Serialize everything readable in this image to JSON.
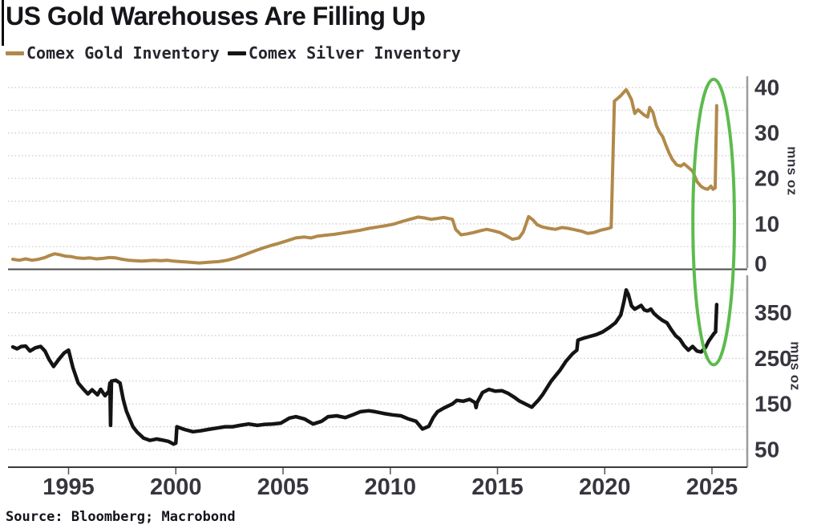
{
  "header": {
    "title": "US Gold Warehouses Are Filling Up"
  },
  "legend": [
    {
      "label": "Comex Gold Inventory",
      "color": "#b1894a"
    },
    {
      "label": "Comex Silver Inventory",
      "color": "#141414"
    }
  ],
  "source": "Source: Bloomberg; Macrobond",
  "colors": {
    "gold_line": "#b1894a",
    "silver_line": "#141414",
    "annotation_green": "#5dbb4d",
    "gridline": "#c9c9c9",
    "axis_line": "#3a3a3a",
    "panel_divider": "#4a4a4a",
    "right_axis_line": "#9c9c9c",
    "tick_label": "#36363e"
  },
  "chart_data": [
    {
      "type": "line",
      "panel": "top",
      "ylabel": "mns oz",
      "ylim": [
        0,
        42.5
      ],
      "ygrid_step": 5,
      "yticks_labeled": [
        0,
        10,
        20,
        30,
        40
      ],
      "x_range": [
        1992.4,
        2026.6
      ],
      "grid": "dotted-horizontal",
      "legend_position": "top-left-above-chart",
      "series": [
        {
          "name": "Comex Gold Inventory",
          "color": "#b1894a",
          "points": [
            [
              1992.4,
              2.2
            ],
            [
              1992.7,
              2.0
            ],
            [
              1993.0,
              2.3
            ],
            [
              1993.3,
              2.0
            ],
            [
              1993.6,
              2.2
            ],
            [
              1993.9,
              2.6
            ],
            [
              1994.1,
              3.0
            ],
            [
              1994.35,
              3.4
            ],
            [
              1994.6,
              3.2
            ],
            [
              1994.85,
              2.9
            ],
            [
              1995.1,
              2.8
            ],
            [
              1995.4,
              2.5
            ],
            [
              1995.7,
              2.4
            ],
            [
              1996.0,
              2.5
            ],
            [
              1996.3,
              2.3
            ],
            [
              1996.6,
              2.4
            ],
            [
              1996.9,
              2.6
            ],
            [
              1997.2,
              2.5
            ],
            [
              1997.5,
              2.2
            ],
            [
              1997.8,
              2.0
            ],
            [
              1998.1,
              1.9
            ],
            [
              1998.4,
              1.8
            ],
            [
              1998.7,
              1.9
            ],
            [
              1999.0,
              2.0
            ],
            [
              1999.3,
              1.9
            ],
            [
              1999.6,
              2.0
            ],
            [
              1999.9,
              1.8
            ],
            [
              2000.2,
              1.7
            ],
            [
              2000.5,
              1.6
            ],
            [
              2000.8,
              1.5
            ],
            [
              2001.1,
              1.4
            ],
            [
              2001.4,
              1.5
            ],
            [
              2001.7,
              1.6
            ],
            [
              2002.0,
              1.7
            ],
            [
              2002.4,
              2.0
            ],
            [
              2002.8,
              2.5
            ],
            [
              2003.2,
              3.2
            ],
            [
              2003.6,
              3.9
            ],
            [
              2004.0,
              4.6
            ],
            [
              2004.4,
              5.2
            ],
            [
              2004.8,
              5.7
            ],
            [
              2005.2,
              6.3
            ],
            [
              2005.6,
              6.9
            ],
            [
              2006.0,
              7.1
            ],
            [
              2006.3,
              6.9
            ],
            [
              2006.6,
              7.3
            ],
            [
              2007.0,
              7.5
            ],
            [
              2007.4,
              7.7
            ],
            [
              2007.8,
              8.0
            ],
            [
              2008.2,
              8.3
            ],
            [
              2008.6,
              8.6
            ],
            [
              2009.0,
              9.0
            ],
            [
              2009.4,
              9.3
            ],
            [
              2009.8,
              9.6
            ],
            [
              2010.2,
              10.0
            ],
            [
              2010.6,
              10.6
            ],
            [
              2011.0,
              11.1
            ],
            [
              2011.3,
              11.5
            ],
            [
              2011.6,
              11.3
            ],
            [
              2011.9,
              11.0
            ],
            [
              2012.2,
              11.2
            ],
            [
              2012.5,
              11.4
            ],
            [
              2012.9,
              11.0
            ],
            [
              2013.05,
              8.8
            ],
            [
              2013.3,
              7.6
            ],
            [
              2013.6,
              7.8
            ],
            [
              2013.9,
              8.1
            ],
            [
              2014.2,
              8.5
            ],
            [
              2014.5,
              8.8
            ],
            [
              2014.8,
              8.5
            ],
            [
              2015.1,
              8.1
            ],
            [
              2015.4,
              7.4
            ],
            [
              2015.7,
              6.6
            ],
            [
              2016.0,
              6.9
            ],
            [
              2016.2,
              8.2
            ],
            [
              2016.45,
              11.6
            ],
            [
              2016.65,
              10.9
            ],
            [
              2016.85,
              9.8
            ],
            [
              2017.1,
              9.3
            ],
            [
              2017.4,
              9.0
            ],
            [
              2017.7,
              8.8
            ],
            [
              2018.0,
              9.2
            ],
            [
              2018.3,
              9.0
            ],
            [
              2018.6,
              8.7
            ],
            [
              2018.9,
              8.4
            ],
            [
              2019.2,
              7.9
            ],
            [
              2019.5,
              8.1
            ],
            [
              2019.8,
              8.6
            ],
            [
              2020.1,
              8.9
            ],
            [
              2020.3,
              9.2
            ],
            [
              2020.45,
              37.0
            ],
            [
              2020.6,
              37.6
            ],
            [
              2020.75,
              38.2
            ],
            [
              2020.9,
              39.0
            ],
            [
              2021.0,
              39.5
            ],
            [
              2021.1,
              38.7
            ],
            [
              2021.25,
              37.3
            ],
            [
              2021.4,
              34.3
            ],
            [
              2021.55,
              35.1
            ],
            [
              2021.7,
              34.5
            ],
            [
              2021.85,
              33.9
            ],
            [
              2022.0,
              33.5
            ],
            [
              2022.1,
              35.6
            ],
            [
              2022.25,
              34.5
            ],
            [
              2022.4,
              31.7
            ],
            [
              2022.55,
              30.2
            ],
            [
              2022.7,
              29.2
            ],
            [
              2022.85,
              27.3
            ],
            [
              2023.0,
              25.6
            ],
            [
              2023.15,
              24.2
            ],
            [
              2023.35,
              23.0
            ],
            [
              2023.55,
              22.7
            ],
            [
              2023.7,
              23.2
            ],
            [
              2023.9,
              22.4
            ],
            [
              2024.1,
              21.6
            ],
            [
              2024.3,
              19.3
            ],
            [
              2024.5,
              18.2
            ],
            [
              2024.65,
              17.8
            ],
            [
              2024.8,
              17.6
            ],
            [
              2024.95,
              18.3
            ],
            [
              2025.05,
              17.6
            ],
            [
              2025.15,
              17.9
            ],
            [
              2025.22,
              36.0
            ]
          ]
        }
      ]
    },
    {
      "type": "line",
      "panel": "bottom",
      "ylabel": "mns oz",
      "ylim": [
        30,
        432
      ],
      "ygrid_step": 50,
      "ygrid_start": 50,
      "yticks_labeled": [
        50,
        150,
        250,
        350
      ],
      "x_range": [
        1992.4,
        2026.6
      ],
      "xticks": [
        1995,
        2000,
        2005,
        2010,
        2015,
        2020,
        2025
      ],
      "grid": "dotted-horizontal",
      "series": [
        {
          "name": "Comex Silver Inventory",
          "color": "#141414",
          "points": [
            [
              1992.4,
              275
            ],
            [
              1992.6,
              271
            ],
            [
              1992.8,
              276
            ],
            [
              1993.0,
              277
            ],
            [
              1993.2,
              266
            ],
            [
              1993.45,
              273
            ],
            [
              1993.7,
              276
            ],
            [
              1993.9,
              266
            ],
            [
              1994.1,
              247
            ],
            [
              1994.3,
              232
            ],
            [
              1994.55,
              248
            ],
            [
              1994.8,
              262
            ],
            [
              1995.0,
              268
            ],
            [
              1995.2,
              230
            ],
            [
              1995.45,
              196
            ],
            [
              1995.7,
              182
            ],
            [
              1995.9,
              172
            ],
            [
              1996.1,
              181
            ],
            [
              1996.35,
              170
            ],
            [
              1996.5,
              182
            ],
            [
              1996.7,
              168
            ],
            [
              1996.88,
              178
            ],
            [
              1996.93,
              196
            ],
            [
              1996.96,
              103
            ],
            [
              1997.0,
              200
            ],
            [
              1997.2,
              202
            ],
            [
              1997.4,
              196
            ],
            [
              1997.55,
              160
            ],
            [
              1997.7,
              134
            ],
            [
              1997.85,
              117
            ],
            [
              1998.0,
              100
            ],
            [
              1998.2,
              88
            ],
            [
              1998.5,
              75
            ],
            [
              1998.8,
              70
            ],
            [
              1999.1,
              73
            ],
            [
              1999.35,
              71
            ],
            [
              1999.65,
              68
            ],
            [
              1999.9,
              62
            ],
            [
              2000.0,
              64
            ],
            [
              2000.05,
              100
            ],
            [
              2000.4,
              94
            ],
            [
              2000.8,
              89
            ],
            [
              2001.15,
              91
            ],
            [
              2001.5,
              94
            ],
            [
              2001.9,
              97
            ],
            [
              2002.3,
              100
            ],
            [
              2002.65,
              100
            ],
            [
              2003.0,
              103
            ],
            [
              2003.4,
              106
            ],
            [
              2003.8,
              103
            ],
            [
              2004.1,
              105
            ],
            [
              2004.5,
              106
            ],
            [
              2004.9,
              108
            ],
            [
              2005.3,
              119
            ],
            [
              2005.6,
              122
            ],
            [
              2006.0,
              117
            ],
            [
              2006.4,
              106
            ],
            [
              2006.8,
              112
            ],
            [
              2007.1,
              122
            ],
            [
              2007.5,
              124
            ],
            [
              2007.9,
              120
            ],
            [
              2008.25,
              126
            ],
            [
              2008.6,
              133
            ],
            [
              2009.0,
              135
            ],
            [
              2009.3,
              133
            ],
            [
              2009.7,
              129
            ],
            [
              2010.1,
              126
            ],
            [
              2010.5,
              124
            ],
            [
              2010.85,
              117
            ],
            [
              2011.2,
              112
            ],
            [
              2011.5,
              95
            ],
            [
              2011.8,
              101
            ],
            [
              2012.0,
              120
            ],
            [
              2012.2,
              133
            ],
            [
              2012.5,
              141
            ],
            [
              2012.9,
              150
            ],
            [
              2013.1,
              158
            ],
            [
              2013.4,
              156
            ],
            [
              2013.7,
              160
            ],
            [
              2013.95,
              153
            ],
            [
              2014.0,
              142
            ],
            [
              2014.05,
              153
            ],
            [
              2014.3,
              175
            ],
            [
              2014.6,
              182
            ],
            [
              2014.9,
              178
            ],
            [
              2015.2,
              179
            ],
            [
              2015.5,
              173
            ],
            [
              2015.8,
              164
            ],
            [
              2016.0,
              157
            ],
            [
              2016.3,
              150
            ],
            [
              2016.6,
              143
            ],
            [
              2016.9,
              158
            ],
            [
              2017.1,
              170
            ],
            [
              2017.5,
              200
            ],
            [
              2017.9,
              223
            ],
            [
              2018.2,
              244
            ],
            [
              2018.5,
              260
            ],
            [
              2018.7,
              268
            ],
            [
              2018.75,
              290
            ],
            [
              2019.0,
              294
            ],
            [
              2019.3,
              298
            ],
            [
              2019.6,
              302
            ],
            [
              2019.9,
              308
            ],
            [
              2020.2,
              317
            ],
            [
              2020.5,
              328
            ],
            [
              2020.75,
              345
            ],
            [
              2020.9,
              375
            ],
            [
              2021.0,
              400
            ],
            [
              2021.1,
              390
            ],
            [
              2021.25,
              365
            ],
            [
              2021.4,
              358
            ],
            [
              2021.55,
              362
            ],
            [
              2021.7,
              366
            ],
            [
              2021.85,
              356
            ],
            [
              2022.0,
              354
            ],
            [
              2022.15,
              358
            ],
            [
              2022.3,
              348
            ],
            [
              2022.5,
              340
            ],
            [
              2022.7,
              333
            ],
            [
              2022.9,
              328
            ],
            [
              2023.1,
              313
            ],
            [
              2023.3,
              300
            ],
            [
              2023.5,
              292
            ],
            [
              2023.7,
              278
            ],
            [
              2023.9,
              268
            ],
            [
              2024.1,
              276
            ],
            [
              2024.3,
              266
            ],
            [
              2024.5,
              264
            ],
            [
              2024.7,
              274
            ],
            [
              2024.85,
              288
            ],
            [
              2025.0,
              298
            ],
            [
              2025.1,
              305
            ],
            [
              2025.17,
              308
            ],
            [
              2025.22,
              368
            ]
          ]
        }
      ]
    }
  ],
  "annotation": {
    "shape": "ellipse",
    "purpose": "highlights early-2025 inventory spike across both panels",
    "color": "#5dbb4d",
    "center_year": 2025.08,
    "year_radius": 0.97,
    "top_value_gold": 41.8,
    "bottom_value_silver": 236
  }
}
